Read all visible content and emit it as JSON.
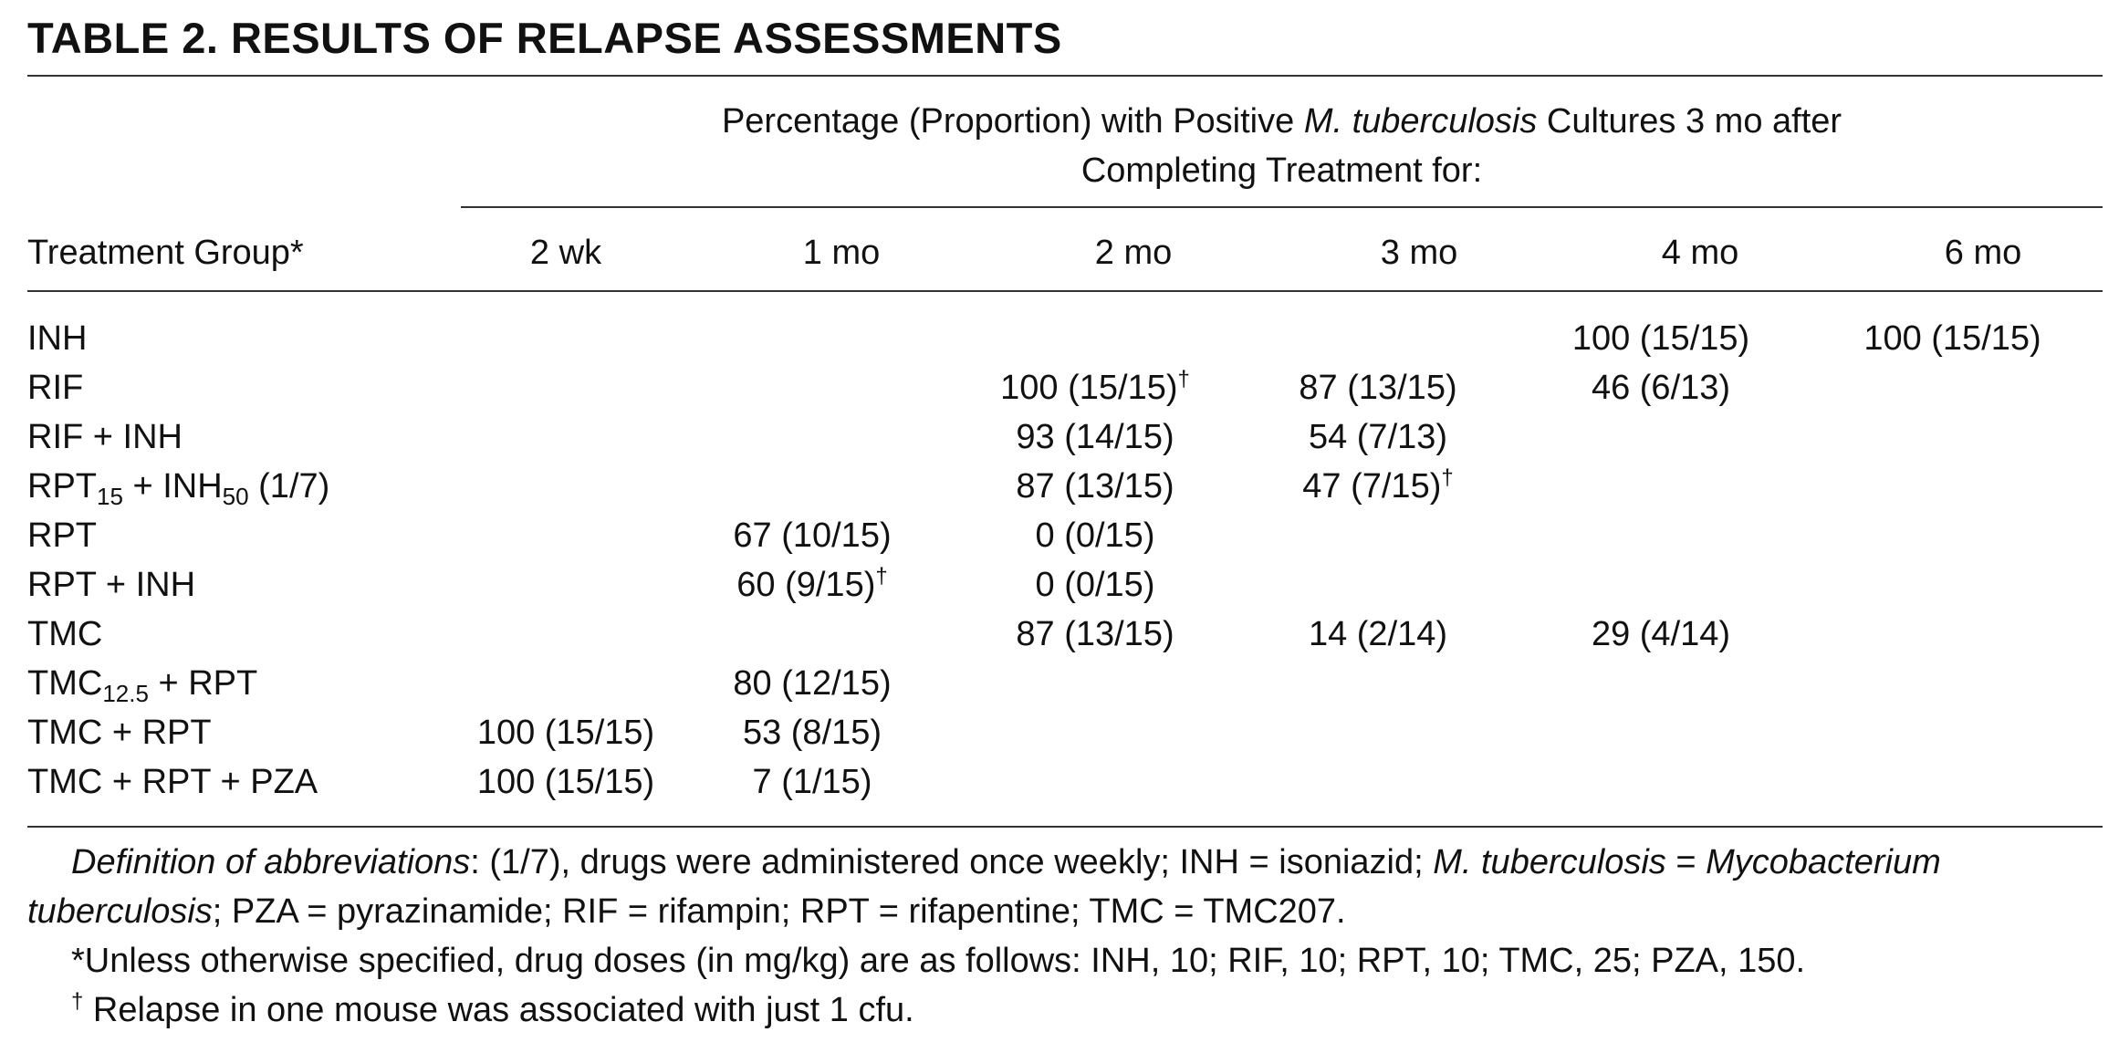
{
  "title": "TABLE  2.  RESULTS OF RELAPSE ASSESSMENTS",
  "spanner": {
    "before_italic": "Percentage (Proportion) with Positive ",
    "italic": "M. tuberculosis",
    "after_italic": " Cultures 3 mo after",
    "line2": "Completing Treatment for:"
  },
  "columns": {
    "group": "Treatment Group*",
    "c1": "2 wk",
    "c2": "1 mo",
    "c3": "2 mo",
    "c4": "3 mo",
    "c5": "4 mo",
    "c6": "6 mo"
  },
  "rows": [
    {
      "g": "INH",
      "c1": "",
      "c2": "",
      "c3": "",
      "c4": "",
      "c5": "100 (15/15)",
      "c6": "100 (15/15)"
    },
    {
      "g": "RIF",
      "c1": "",
      "c2": "",
      "c3": "100 (15/15)",
      "c3_sup": "†",
      "c4": "87 (13/15)",
      "c5": "46 (6/13)",
      "c6": ""
    },
    {
      "g": "RIF + INH",
      "c1": "",
      "c2": "",
      "c3": "93 (14/15)",
      "c4": "54 (7/13)",
      "c5": "",
      "c6": ""
    },
    {
      "g_a": "RPT",
      "g_sub1": "15",
      "g_b": " + INH",
      "g_sub2": "50",
      "g_c": " (1/7)",
      "c1": "",
      "c2": "",
      "c3": "87 (13/15)",
      "c4": "47 (7/15)",
      "c4_sup": "†",
      "c5": "",
      "c6": ""
    },
    {
      "g": "RPT",
      "c1": "",
      "c2": "67 (10/15)",
      "c3": "0 (0/15)",
      "c4": "",
      "c5": "",
      "c6": ""
    },
    {
      "g": "RPT + INH",
      "c1": "",
      "c2": "60 (9/15)",
      "c2_sup": "†",
      "c3": "0 (0/15)",
      "c4": "",
      "c5": "",
      "c6": ""
    },
    {
      "g": "TMC",
      "c1": "",
      "c2": "",
      "c3": "87 (13/15)",
      "c4": "14 (2/14)",
      "c5": "29 (4/14)",
      "c6": ""
    },
    {
      "g_a": "TMC",
      "g_sub1": "12.5",
      "g_b": " + RPT",
      "c1": "",
      "c2": "80 (12/15)",
      "c3": "",
      "c4": "",
      "c5": "",
      "c6": ""
    },
    {
      "g": "TMC + RPT",
      "c1": "100 (15/15)",
      "c2": "53 (8/15)",
      "c3": "",
      "c4": "",
      "c5": "",
      "c6": ""
    },
    {
      "g": "TMC + RPT + PZA",
      "c1": "100 (15/15)",
      "c2": "7 (1/15)",
      "c3": "",
      "c4": "",
      "c5": "",
      "c6": ""
    }
  ],
  "notes": {
    "def_italic1": "Definition of abbreviations",
    "def_text1": ": (1/7), drugs were administered once weekly; INH = isoniazid; ",
    "def_italic2": "M. tuberculosis",
    "def_text2": " = ",
    "def_italic3": "Mycobacterium tuberculosis",
    "def_text3": "; PZA = pyrazinamide; RIF = rifampin; RPT = rifapentine; TMC = TMC207.",
    "star_mark": "*",
    "star_text": "Unless otherwise specified, drug doses (in mg/kg) are as follows: INH, 10; RIF, 10; RPT, 10; TMC, 25; PZA, 150.",
    "dagger_mark": "†",
    "dagger_text": " Relapse in one mouse was associated with just 1 cfu."
  }
}
